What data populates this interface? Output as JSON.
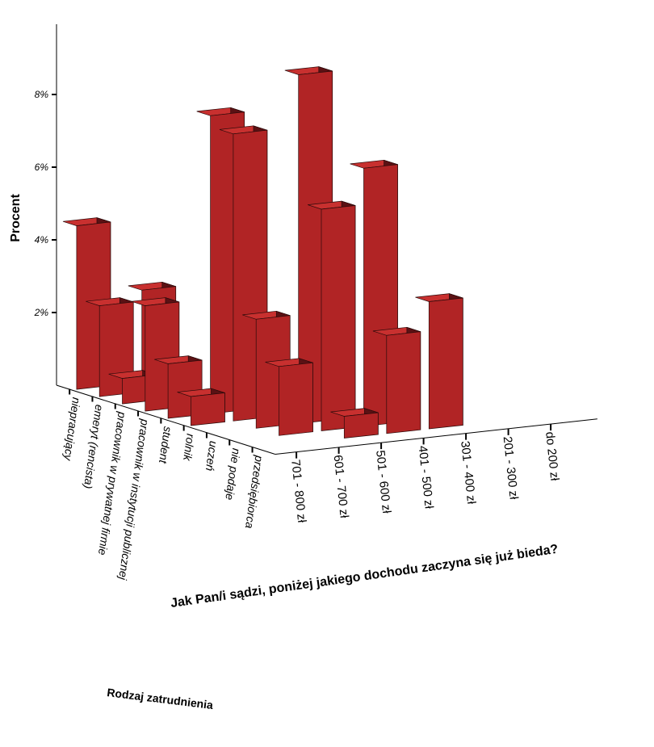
{
  "chart_data": {
    "type": "bar3d",
    "title": "",
    "zlabel": "Procent",
    "xlabel": "Rodzaj zatrudnienia",
    "ylabel": "Jak Pan/i sądzi, poniżej jakiego dochodu zaczyna się już bieda?",
    "z_ticks": [
      "2%",
      "4%",
      "6%",
      "8%"
    ],
    "zlim": [
      0,
      10
    ],
    "x_categories": [
      "niepracujący",
      "emeryt (rencista)",
      "pracownik w prywatnej firmie",
      "pracownik w instytucji publicznej",
      "student",
      "rolnik",
      "uczeń",
      "nie podaje",
      "przedsiębiorca"
    ],
    "y_categories": [
      "701 - 800 zł",
      "601 - 700 zł",
      "501 - 600 zł",
      "401 - 500 zł",
      "301 - 400 zł",
      "201 - 300 zł",
      "do 200 zł"
    ],
    "cells": [
      {
        "emp": "niepracujący",
        "income": "701 - 800 zł",
        "value": 4.5
      },
      {
        "emp": "emeryt (rencista)",
        "income": "701 - 800 zł",
        "value": 2.5
      },
      {
        "emp": "emeryt (rencista)",
        "income": "601 - 700 zł",
        "value": 2.8
      },
      {
        "emp": "pracownik w prywatnej firmie",
        "income": "701 - 800 zł",
        "value": 0.7
      },
      {
        "emp": "pracownik w instytucji publicznej",
        "income": "701 - 800 zł",
        "value": 2.9
      },
      {
        "emp": "student",
        "income": "701 - 800 zł",
        "value": 1.5
      },
      {
        "emp": "student",
        "income": "601 - 700 zł",
        "value": 8.2
      },
      {
        "emp": "rolnik",
        "income": "701 - 800 zł",
        "value": 0.8
      },
      {
        "emp": "rolnik",
        "income": "601 - 700 zł",
        "value": 7.9
      },
      {
        "emp": "uczeń",
        "income": "601 - 700 zł",
        "value": 3.0
      },
      {
        "emp": "uczeń",
        "income": "501 - 600 zł",
        "value": 9.6
      },
      {
        "emp": "nie podaje",
        "income": "601 - 700 zł",
        "value": 1.9
      },
      {
        "emp": "nie podaje",
        "income": "501 - 600 zł",
        "value": 6.1
      },
      {
        "emp": "nie podaje",
        "income": "401 - 500 zł",
        "value": 7.1
      },
      {
        "emp": "przedsiębiorca",
        "income": "501 - 600 zł",
        "value": 0.6
      },
      {
        "emp": "przedsiębiorca",
        "income": "401 - 500 zł",
        "value": 2.7
      },
      {
        "emp": "przedsiębiorca",
        "income": "301 - 400 zł",
        "value": 3.5
      }
    ]
  }
}
